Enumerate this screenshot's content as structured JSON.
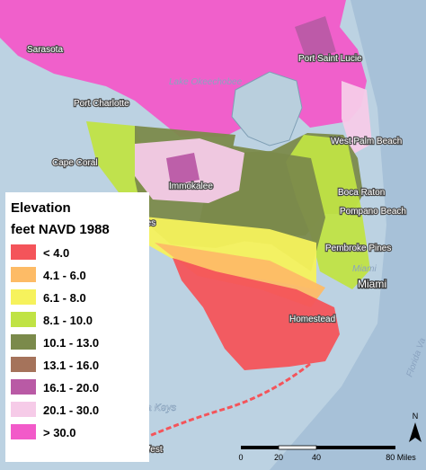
{
  "legend": {
    "title": "Elevation",
    "subtitle": "feet NAVD 1988",
    "items": [
      {
        "label": "< 4.0",
        "color": "#f4545a"
      },
      {
        "label": "4.1 - 6.0",
        "color": "#fdbb66"
      },
      {
        "label": "6.1 - 8.0",
        "color": "#f6f25c"
      },
      {
        "label": "8.1 - 10.0",
        "color": "#c0e344"
      },
      {
        "label": "10.1 - 13.0",
        "color": "#7b8a4b"
      },
      {
        "label": "13.1 - 16.0",
        "color": "#a5735b"
      },
      {
        "label": "16.1 - 20.0",
        "color": "#b95aa5"
      },
      {
        "label": "20.1 - 30.0",
        "color": "#f6cbe8"
      },
      {
        "label": "> 30.0",
        "color": "#f25ac9"
      }
    ]
  },
  "places": [
    "Sarasota",
    "Port Saint Lucie",
    "Lake Okeechobee",
    "Port Charlotte",
    "West Palm Beach",
    "Cape Coral",
    "Immokalee",
    "Boca Raton",
    "Pompano Beach",
    "Naples",
    "Pembroke Pines",
    "Miami",
    "Miami",
    "Homestead",
    "Key West"
  ],
  "water": [
    "Florida Keys",
    "Florida Va"
  ],
  "north": "N",
  "scale_bar": [
    "0",
    "20",
    "40",
    "80 Miles"
  ]
}
